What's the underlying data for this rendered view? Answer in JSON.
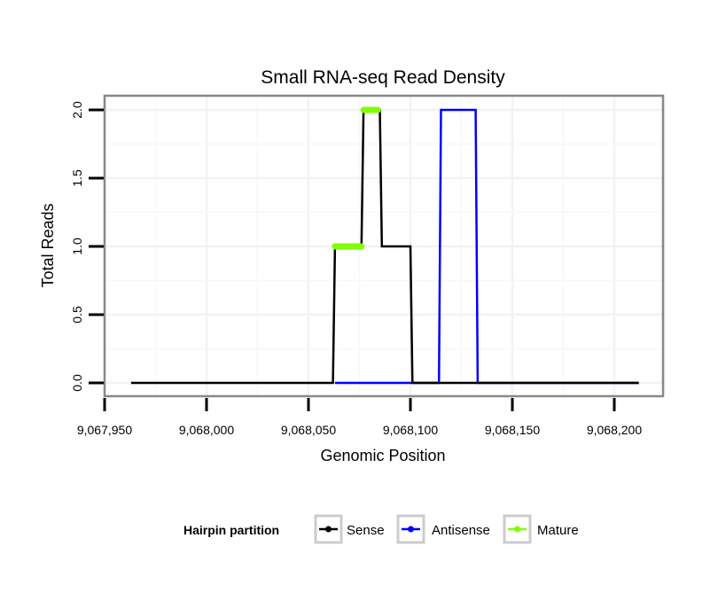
{
  "chart_data": {
    "type": "line",
    "title": "Small RNA-seq Read Density",
    "xlabel": "Genomic Position",
    "ylabel": "Total Reads",
    "xlim": [
      9067950,
      9068225
    ],
    "ylim": [
      -0.1,
      2.1
    ],
    "x_ticks": [
      9067950,
      9068000,
      9068050,
      9068100,
      9068150,
      9068200
    ],
    "x_tick_labels": [
      "9,067,950",
      "9,068,000",
      "9,068,050",
      "9,068,100",
      "9,068,150",
      "9,068,200"
    ],
    "y_ticks": [
      0,
      0.5,
      1,
      1.5,
      2
    ],
    "y_tick_labels": [
      "0.0",
      "0.5",
      "1.0",
      "1.5",
      "2.0"
    ],
    "grid": true,
    "legend": {
      "title": "Hairpin partition",
      "placement": "bottom",
      "entries": [
        "Sense",
        "Antisense",
        "Mature"
      ]
    },
    "series": [
      {
        "name": "Antisense",
        "color": "#0000ff",
        "x": [
          9068063,
          9068114,
          9068115,
          9068132,
          9068133,
          9068212
        ],
        "y": [
          0,
          0,
          2,
          2,
          0,
          0
        ]
      },
      {
        "name": "Sense",
        "color": "#000000",
        "x": [
          9067963,
          9068062,
          9068063,
          9068076,
          9068077,
          9068085,
          9068086,
          9068100,
          9068101,
          9068212
        ],
        "y": [
          0,
          0,
          1,
          1,
          2,
          2,
          1,
          1,
          0,
          0
        ]
      },
      {
        "name": "Mature",
        "color": "#7fff00",
        "segments": [
          {
            "x": [
              9068063,
              9068076
            ],
            "y": [
              1,
              1
            ]
          },
          {
            "x": [
              9068077,
              9068084
            ],
            "y": [
              2,
              2
            ]
          }
        ]
      }
    ]
  }
}
